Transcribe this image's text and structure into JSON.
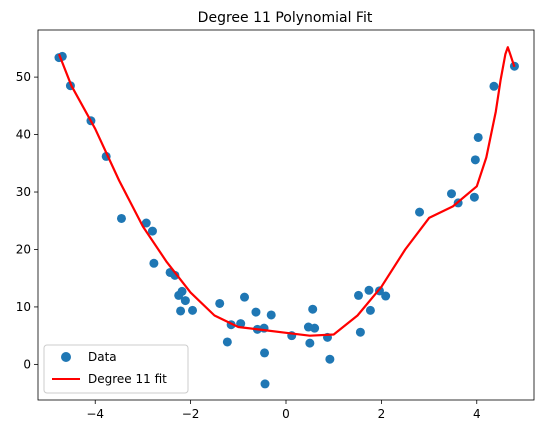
{
  "chart_data": {
    "type": "scatter",
    "title": "Degree 11 Polynomial Fit",
    "xlabel": "",
    "ylabel": "",
    "xlim": [
      -5.2,
      5.2
    ],
    "ylim": [
      -6.2,
      58.2
    ],
    "x_ticks": [
      -4,
      -2,
      0,
      2,
      4
    ],
    "x_tick_labels": [
      "−4",
      "−2",
      "0",
      "2",
      "4"
    ],
    "y_ticks": [
      0,
      10,
      20,
      30,
      40,
      50
    ],
    "y_tick_labels": [
      "0",
      "10",
      "20",
      "30",
      "40",
      "50"
    ],
    "grid": false,
    "legend": {
      "position": "lower-left",
      "entries": [
        "Data",
        "Degree 11 fit"
      ]
    },
    "colors": {
      "data": "#1f77b4",
      "fit": "#ff0000"
    },
    "series": [
      {
        "name": "Data",
        "type": "scatter",
        "points": [
          [
            -4.76,
            53.4
          ],
          [
            -4.69,
            53.6
          ],
          [
            -4.52,
            48.5
          ],
          [
            -4.09,
            42.4
          ],
          [
            -3.77,
            36.2
          ],
          [
            -3.45,
            25.4
          ],
          [
            -2.93,
            24.6
          ],
          [
            -2.8,
            23.2
          ],
          [
            -2.77,
            17.6
          ],
          [
            -2.43,
            16.0
          ],
          [
            -2.33,
            15.5
          ],
          [
            -2.25,
            12.0
          ],
          [
            -2.21,
            9.3
          ],
          [
            -2.18,
            12.7
          ],
          [
            -2.11,
            11.1
          ],
          [
            -1.96,
            9.4
          ],
          [
            -1.39,
            10.6
          ],
          [
            -1.23,
            3.9
          ],
          [
            -1.15,
            6.9
          ],
          [
            -0.95,
            7.1
          ],
          [
            -0.87,
            11.7
          ],
          [
            -0.63,
            9.1
          ],
          [
            -0.6,
            6.1
          ],
          [
            -0.46,
            6.3
          ],
          [
            -0.45,
            2.0
          ],
          [
            -0.44,
            -3.4
          ],
          [
            -0.31,
            8.6
          ],
          [
            0.12,
            5.0
          ],
          [
            0.47,
            6.5
          ],
          [
            0.5,
            3.7
          ],
          [
            0.56,
            9.6
          ],
          [
            0.6,
            6.3
          ],
          [
            0.87,
            4.7
          ],
          [
            0.92,
            0.9
          ],
          [
            1.52,
            12.0
          ],
          [
            1.56,
            5.6
          ],
          [
            1.74,
            12.9
          ],
          [
            1.77,
            9.4
          ],
          [
            1.96,
            12.8
          ],
          [
            2.09,
            11.9
          ],
          [
            2.8,
            26.5
          ],
          [
            3.47,
            29.7
          ],
          [
            3.61,
            28.1
          ],
          [
            3.95,
            29.1
          ],
          [
            3.97,
            35.6
          ],
          [
            4.03,
            39.5
          ],
          [
            4.36,
            48.4
          ],
          [
            4.79,
            51.9
          ]
        ]
      },
      {
        "name": "Degree 11 fit",
        "type": "line",
        "points": [
          [
            -4.76,
            54.0
          ],
          [
            -4.5,
            48.5
          ],
          [
            -4.0,
            41.0
          ],
          [
            -3.5,
            32.0
          ],
          [
            -3.0,
            24.0
          ],
          [
            -2.5,
            17.8
          ],
          [
            -2.0,
            12.5
          ],
          [
            -1.5,
            8.5
          ],
          [
            -1.0,
            6.5
          ],
          [
            -0.5,
            6.0
          ],
          [
            0.0,
            5.5
          ],
          [
            0.5,
            5.0
          ],
          [
            1.0,
            5.2
          ],
          [
            1.5,
            8.5
          ],
          [
            2.0,
            13.5
          ],
          [
            2.5,
            20.0
          ],
          [
            3.0,
            25.5
          ],
          [
            3.5,
            27.5
          ],
          [
            4.0,
            31.0
          ],
          [
            4.2,
            36.0
          ],
          [
            4.4,
            44.0
          ],
          [
            4.5,
            49.5
          ],
          [
            4.6,
            54.0
          ],
          [
            4.65,
            55.2
          ],
          [
            4.7,
            54.0
          ],
          [
            4.79,
            51.8
          ]
        ]
      }
    ]
  }
}
